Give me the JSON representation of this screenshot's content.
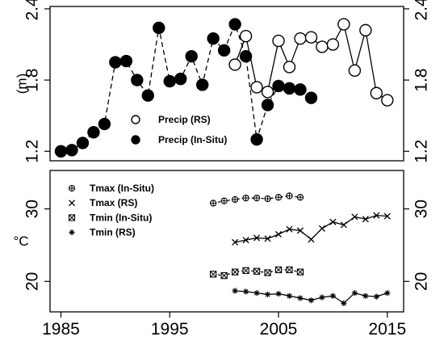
{
  "chart_data": [
    {
      "type": "line",
      "ylabel": "(m)",
      "xlim": [
        1984,
        2016.5
      ],
      "ylim": [
        1.12,
        2.42
      ],
      "yticks": [
        "1.2",
        "1.8",
        "2.4"
      ],
      "legend_position": "bottom-center",
      "series": [
        {
          "name": "Precip (RS)",
          "marker": "open-circle",
          "line": "solid",
          "points": [
            {
              "x": 2001,
              "y": 1.93
            },
            {
              "x": 2002,
              "y": 2.17
            },
            {
              "x": 2003,
              "y": 1.74
            },
            {
              "x": 2004,
              "y": 1.7
            },
            {
              "x": 2005,
              "y": 2.13
            },
            {
              "x": 2006,
              "y": 1.91
            },
            {
              "x": 2007,
              "y": 2.15
            },
            {
              "x": 2008,
              "y": 2.16
            },
            {
              "x": 2009,
              "y": 2.08
            },
            {
              "x": 2010,
              "y": 2.1
            },
            {
              "x": 2011,
              "y": 2.27
            },
            {
              "x": 2012,
              "y": 1.88
            },
            {
              "x": 2013,
              "y": 2.22
            },
            {
              "x": 2014,
              "y": 1.69
            },
            {
              "x": 2015,
              "y": 1.63
            }
          ]
        },
        {
          "name": "Precip (In-Situ)",
          "marker": "filled-circle",
          "line": "dashed",
          "points": [
            {
              "x": 1985,
              "y": 1.2
            },
            {
              "x": 1986,
              "y": 1.21
            },
            {
              "x": 1987,
              "y": 1.27
            },
            {
              "x": 1988,
              "y": 1.36
            },
            {
              "x": 1989,
              "y": 1.43
            },
            {
              "x": 1990,
              "y": 1.95
            },
            {
              "x": 1991,
              "y": 1.96
            },
            {
              "x": 1992,
              "y": 1.8
            },
            {
              "x": 1993,
              "y": 1.67
            },
            {
              "x": 1994,
              "y": 2.24
            },
            {
              "x": 1995,
              "y": 1.79
            },
            {
              "x": 1996,
              "y": 1.81
            },
            {
              "x": 1997,
              "y": 2.0
            },
            {
              "x": 1998,
              "y": 1.76
            },
            {
              "x": 1999,
              "y": 2.15
            },
            {
              "x": 2000,
              "y": 2.05
            },
            {
              "x": 2001,
              "y": 2.27
            },
            {
              "x": 2002,
              "y": 2.0
            },
            {
              "x": 2003,
              "y": 1.3
            },
            {
              "x": 2004,
              "y": 1.59
            },
            {
              "x": 2005,
              "y": 1.75
            },
            {
              "x": 2006,
              "y": 1.73
            },
            {
              "x": 2007,
              "y": 1.72
            },
            {
              "x": 2008,
              "y": 1.65
            }
          ]
        }
      ]
    },
    {
      "type": "line",
      "ylabel": "°C",
      "xlim": [
        1984,
        2016.5
      ],
      "ylim": [
        15.8,
        35.3
      ],
      "yticks": [
        "20",
        "30"
      ],
      "xticks": [
        "1985",
        "1995",
        "2005",
        "2015"
      ],
      "legend_position": "top-left",
      "series": [
        {
          "name": "Tmax (In-Situ)",
          "marker": "circle-plus",
          "line": "dashed",
          "points": [
            {
              "x": 1999,
              "y": 30.8
            },
            {
              "x": 2000,
              "y": 31.1
            },
            {
              "x": 2001,
              "y": 31.3
            },
            {
              "x": 2002,
              "y": 31.5
            },
            {
              "x": 2003,
              "y": 31.5
            },
            {
              "x": 2004,
              "y": 31.4
            },
            {
              "x": 2005,
              "y": 31.6
            },
            {
              "x": 2006,
              "y": 31.8
            },
            {
              "x": 2007,
              "y": 31.6
            }
          ]
        },
        {
          "name": "Tmax (RS)",
          "marker": "x",
          "line": "solid",
          "points": [
            {
              "x": 2001,
              "y": 25.4
            },
            {
              "x": 2002,
              "y": 25.7
            },
            {
              "x": 2003,
              "y": 26.0
            },
            {
              "x": 2004,
              "y": 25.9
            },
            {
              "x": 2005,
              "y": 26.5
            },
            {
              "x": 2006,
              "y": 27.2
            },
            {
              "x": 2007,
              "y": 27.0
            },
            {
              "x": 2008,
              "y": 25.8
            },
            {
              "x": 2009,
              "y": 27.3
            },
            {
              "x": 2010,
              "y": 28.2
            },
            {
              "x": 2011,
              "y": 27.8
            },
            {
              "x": 2012,
              "y": 28.9
            },
            {
              "x": 2013,
              "y": 28.6
            },
            {
              "x": 2014,
              "y": 29.1
            },
            {
              "x": 2015,
              "y": 29.0
            }
          ]
        },
        {
          "name": "Tmin (In-Situ)",
          "marker": "square-x",
          "line": "dashed",
          "points": [
            {
              "x": 1999,
              "y": 21.0
            },
            {
              "x": 2000,
              "y": 20.8
            },
            {
              "x": 2001,
              "y": 21.3
            },
            {
              "x": 2002,
              "y": 21.5
            },
            {
              "x": 2003,
              "y": 21.4
            },
            {
              "x": 2004,
              "y": 21.2
            },
            {
              "x": 2005,
              "y": 21.6
            },
            {
              "x": 2006,
              "y": 21.6
            },
            {
              "x": 2007,
              "y": 21.3
            }
          ]
        },
        {
          "name": "Tmin (RS)",
          "marker": "asterisk",
          "line": "solid",
          "points": [
            {
              "x": 2001,
              "y": 18.7
            },
            {
              "x": 2002,
              "y": 18.6
            },
            {
              "x": 2003,
              "y": 18.4
            },
            {
              "x": 2004,
              "y": 18.2
            },
            {
              "x": 2005,
              "y": 18.3
            },
            {
              "x": 2006,
              "y": 18.0
            },
            {
              "x": 2007,
              "y": 17.7
            },
            {
              "x": 2008,
              "y": 17.4
            },
            {
              "x": 2009,
              "y": 17.8
            },
            {
              "x": 2010,
              "y": 18.0
            },
            {
              "x": 2011,
              "y": 17.0
            },
            {
              "x": 2012,
              "y": 18.4
            },
            {
              "x": 2013,
              "y": 18.0
            },
            {
              "x": 2014,
              "y": 17.9
            },
            {
              "x": 2015,
              "y": 18.4
            }
          ]
        }
      ]
    }
  ]
}
